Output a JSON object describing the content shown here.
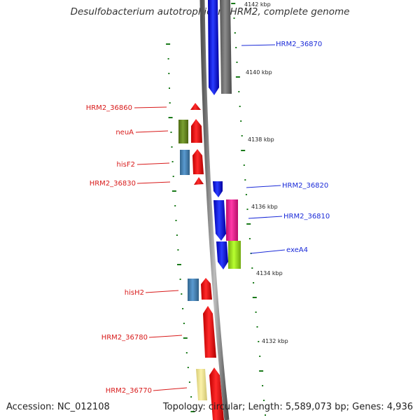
{
  "title": "Desulfobacterium autotrophicum HRM2, complete genome",
  "footer": {
    "accession": "Accession: NC_012108",
    "topology": "Topology: circular; Length: 5,589,073 bp; Genes: 4,936"
  },
  "colors": {
    "forward": "#0a1ae6",
    "reverse": "#e81212",
    "backbone": "#7a7a7a",
    "tick": "#1a7a1a"
  },
  "kbp_ticks": [
    "4142 kbp",
    "4140 kbp",
    "4138 kbp",
    "4136 kbp",
    "4134 kbp",
    "4132 kbp"
  ],
  "genes": [
    {
      "name": "HRM2_36870",
      "strand": "forward",
      "color": "#0a1ae6"
    },
    {
      "name": "HRM2_36860",
      "strand": "reverse",
      "color": "#e81212"
    },
    {
      "name": "neuA",
      "strand": "reverse",
      "color": "#6b8e23"
    },
    {
      "name": "hisF2",
      "strand": "reverse",
      "color": "#4682b4"
    },
    {
      "name": "HRM2_36830",
      "strand": "reverse",
      "color": "#e81212"
    },
    {
      "name": "HRM2_36820",
      "strand": "forward",
      "color": "#0a1ae6"
    },
    {
      "name": "HRM2_36810",
      "strand": "forward",
      "color": "#ff1493"
    },
    {
      "name": "exeA4",
      "strand": "forward",
      "color": "#9acd32"
    },
    {
      "name": "hisH2",
      "strand": "reverse",
      "color": "#4682b4"
    },
    {
      "name": "HRM2_36780",
      "strand": "reverse",
      "color": "#e81212"
    },
    {
      "name": "HRM2_36770",
      "strand": "reverse",
      "color": "#f0e68c"
    }
  ]
}
